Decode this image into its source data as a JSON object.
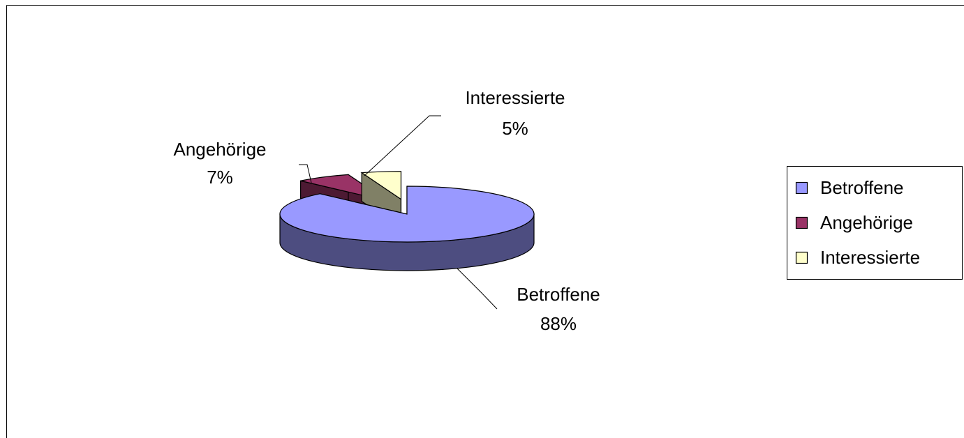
{
  "chart_data": {
    "type": "pie",
    "categories": [
      "Betroffene",
      "Angehörige",
      "Interessierte"
    ],
    "values": [
      88,
      7,
      5
    ],
    "value_labels": [
      "88%",
      "7%",
      "5%"
    ],
    "colors": [
      "#9999ff",
      "#993366",
      "#ffffcc"
    ],
    "legend": "right"
  }
}
